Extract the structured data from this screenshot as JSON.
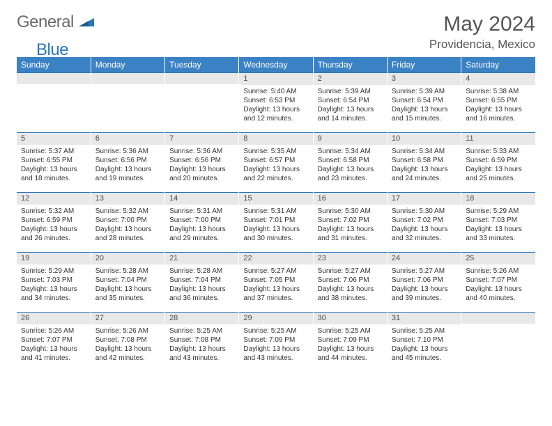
{
  "logo": {
    "text1": "General",
    "text2": "Blue"
  },
  "title": "May 2024",
  "location": "Providencia, Mexico",
  "weekdays": [
    "Sunday",
    "Monday",
    "Tuesday",
    "Wednesday",
    "Thursday",
    "Friday",
    "Saturday"
  ],
  "colors": {
    "header_bg": "#3b82c4",
    "header_text": "#ffffff",
    "day_number_bg": "#e8e8e8",
    "day_border_top": "#2a76b8",
    "text": "#333333",
    "title_text": "#555555",
    "logo_gray": "#6b6b6b",
    "logo_blue": "#2a76b8"
  },
  "weeks": [
    [
      {
        "n": "",
        "sr": "",
        "ss": "",
        "dl": ""
      },
      {
        "n": "",
        "sr": "",
        "ss": "",
        "dl": ""
      },
      {
        "n": "",
        "sr": "",
        "ss": "",
        "dl": ""
      },
      {
        "n": "1",
        "sr": "5:40 AM",
        "ss": "6:53 PM",
        "dl": "13 hours and 12 minutes."
      },
      {
        "n": "2",
        "sr": "5:39 AM",
        "ss": "6:54 PM",
        "dl": "13 hours and 14 minutes."
      },
      {
        "n": "3",
        "sr": "5:39 AM",
        "ss": "6:54 PM",
        "dl": "13 hours and 15 minutes."
      },
      {
        "n": "4",
        "sr": "5:38 AM",
        "ss": "6:55 PM",
        "dl": "13 hours and 16 minutes."
      }
    ],
    [
      {
        "n": "5",
        "sr": "5:37 AM",
        "ss": "6:55 PM",
        "dl": "13 hours and 18 minutes."
      },
      {
        "n": "6",
        "sr": "5:36 AM",
        "ss": "6:56 PM",
        "dl": "13 hours and 19 minutes."
      },
      {
        "n": "7",
        "sr": "5:36 AM",
        "ss": "6:56 PM",
        "dl": "13 hours and 20 minutes."
      },
      {
        "n": "8",
        "sr": "5:35 AM",
        "ss": "6:57 PM",
        "dl": "13 hours and 22 minutes."
      },
      {
        "n": "9",
        "sr": "5:34 AM",
        "ss": "6:58 PM",
        "dl": "13 hours and 23 minutes."
      },
      {
        "n": "10",
        "sr": "5:34 AM",
        "ss": "6:58 PM",
        "dl": "13 hours and 24 minutes."
      },
      {
        "n": "11",
        "sr": "5:33 AM",
        "ss": "6:59 PM",
        "dl": "13 hours and 25 minutes."
      }
    ],
    [
      {
        "n": "12",
        "sr": "5:32 AM",
        "ss": "6:59 PM",
        "dl": "13 hours and 26 minutes."
      },
      {
        "n": "13",
        "sr": "5:32 AM",
        "ss": "7:00 PM",
        "dl": "13 hours and 28 minutes."
      },
      {
        "n": "14",
        "sr": "5:31 AM",
        "ss": "7:00 PM",
        "dl": "13 hours and 29 minutes."
      },
      {
        "n": "15",
        "sr": "5:31 AM",
        "ss": "7:01 PM",
        "dl": "13 hours and 30 minutes."
      },
      {
        "n": "16",
        "sr": "5:30 AM",
        "ss": "7:02 PM",
        "dl": "13 hours and 31 minutes."
      },
      {
        "n": "17",
        "sr": "5:30 AM",
        "ss": "7:02 PM",
        "dl": "13 hours and 32 minutes."
      },
      {
        "n": "18",
        "sr": "5:29 AM",
        "ss": "7:03 PM",
        "dl": "13 hours and 33 minutes."
      }
    ],
    [
      {
        "n": "19",
        "sr": "5:29 AM",
        "ss": "7:03 PM",
        "dl": "13 hours and 34 minutes."
      },
      {
        "n": "20",
        "sr": "5:28 AM",
        "ss": "7:04 PM",
        "dl": "13 hours and 35 minutes."
      },
      {
        "n": "21",
        "sr": "5:28 AM",
        "ss": "7:04 PM",
        "dl": "13 hours and 36 minutes."
      },
      {
        "n": "22",
        "sr": "5:27 AM",
        "ss": "7:05 PM",
        "dl": "13 hours and 37 minutes."
      },
      {
        "n": "23",
        "sr": "5:27 AM",
        "ss": "7:06 PM",
        "dl": "13 hours and 38 minutes."
      },
      {
        "n": "24",
        "sr": "5:27 AM",
        "ss": "7:06 PM",
        "dl": "13 hours and 39 minutes."
      },
      {
        "n": "25",
        "sr": "5:26 AM",
        "ss": "7:07 PM",
        "dl": "13 hours and 40 minutes."
      }
    ],
    [
      {
        "n": "26",
        "sr": "5:26 AM",
        "ss": "7:07 PM",
        "dl": "13 hours and 41 minutes."
      },
      {
        "n": "27",
        "sr": "5:26 AM",
        "ss": "7:08 PM",
        "dl": "13 hours and 42 minutes."
      },
      {
        "n": "28",
        "sr": "5:25 AM",
        "ss": "7:08 PM",
        "dl": "13 hours and 43 minutes."
      },
      {
        "n": "29",
        "sr": "5:25 AM",
        "ss": "7:09 PM",
        "dl": "13 hours and 43 minutes."
      },
      {
        "n": "30",
        "sr": "5:25 AM",
        "ss": "7:09 PM",
        "dl": "13 hours and 44 minutes."
      },
      {
        "n": "31",
        "sr": "5:25 AM",
        "ss": "7:10 PM",
        "dl": "13 hours and 45 minutes."
      },
      {
        "n": "",
        "sr": "",
        "ss": "",
        "dl": ""
      }
    ]
  ]
}
